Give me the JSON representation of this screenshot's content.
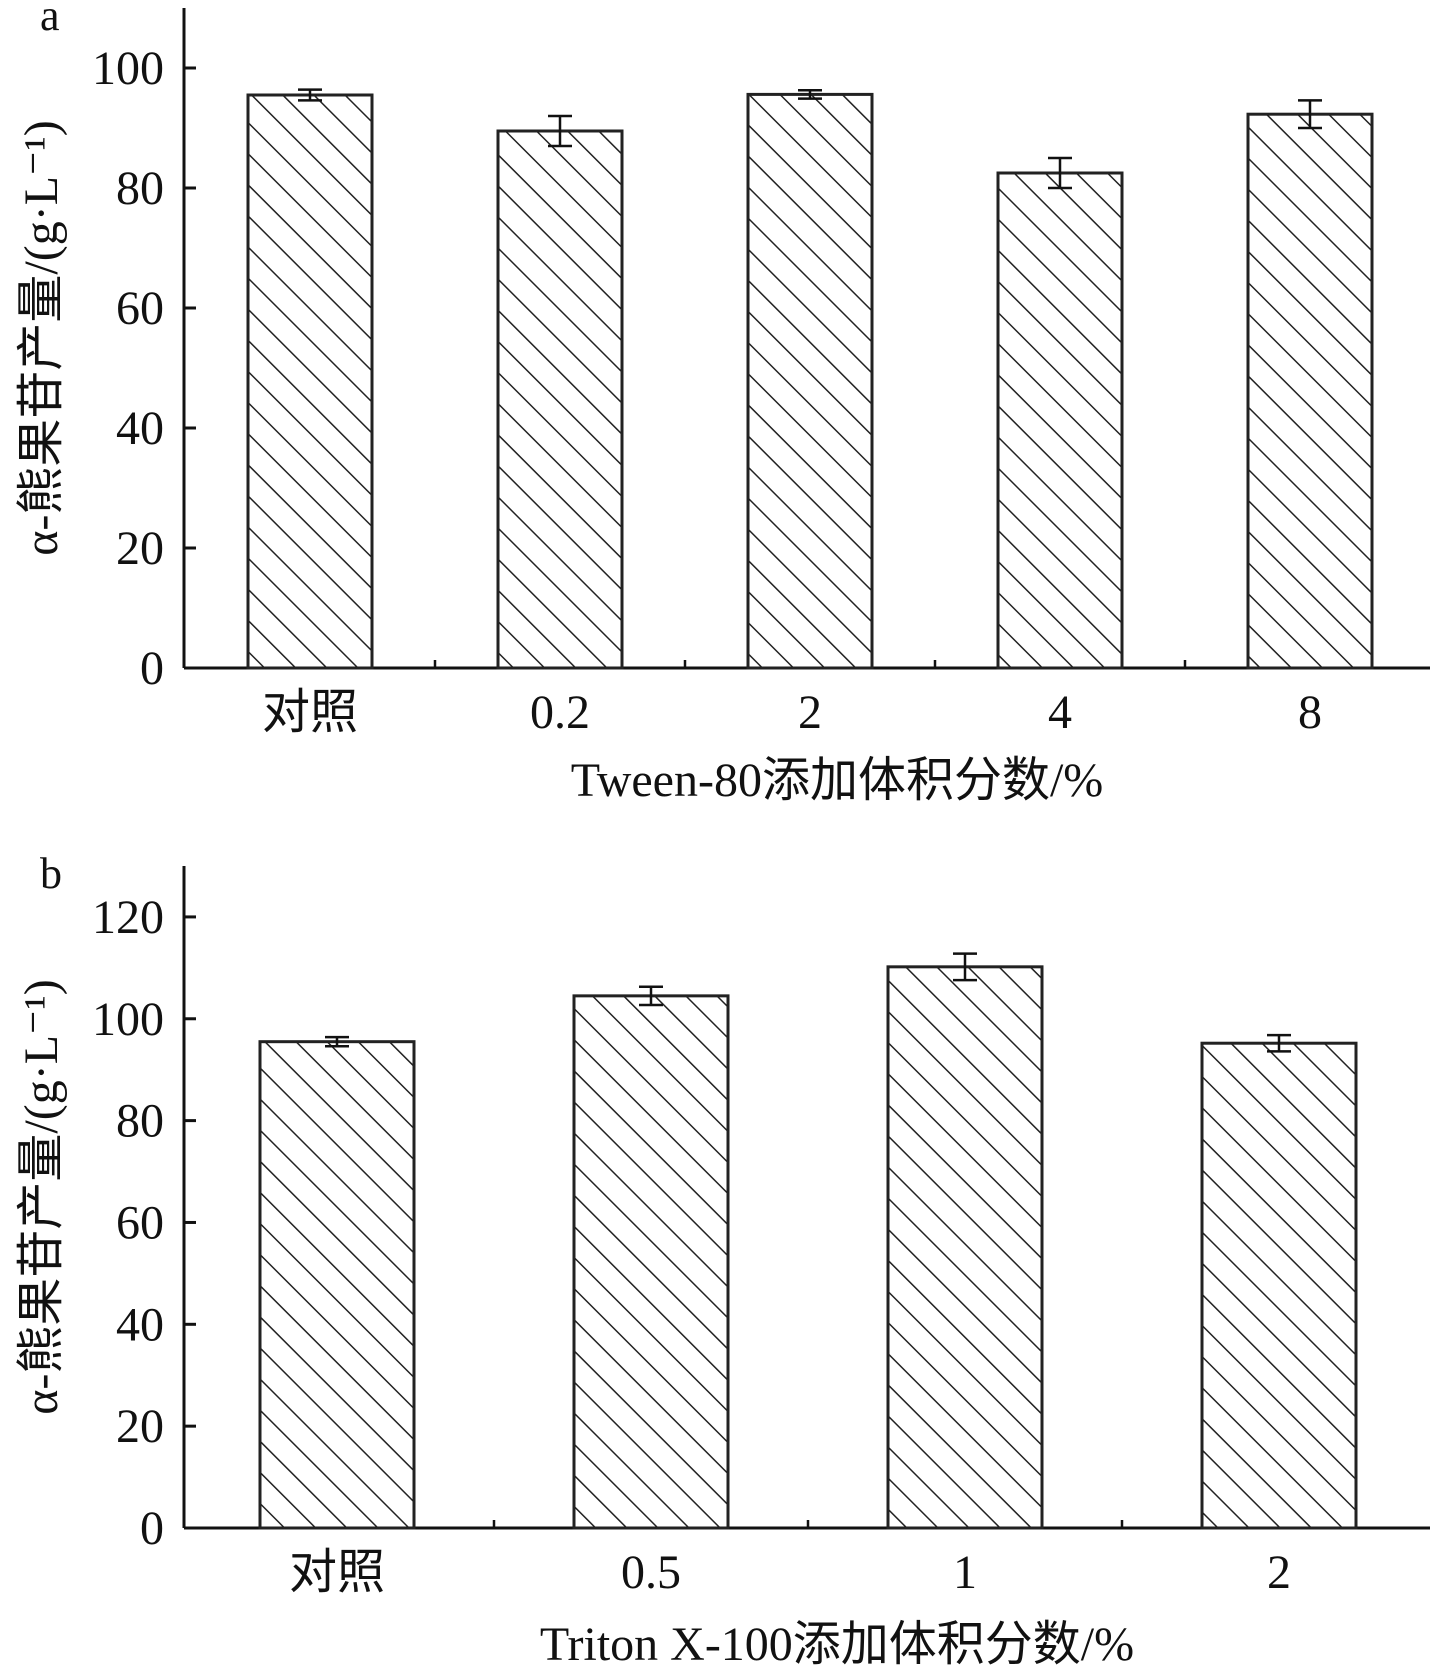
{
  "chart_data": [
    {
      "type": "bar",
      "panel_label": "a",
      "categories": [
        "对照",
        "0.2",
        "2",
        "4",
        "8"
      ],
      "series": [
        {
          "values": [
            95.5,
            89.5,
            95.6,
            82.5,
            92.3
          ],
          "errors": [
            0.9,
            2.5,
            0.7,
            2.5,
            2.3
          ]
        }
      ],
      "xlabel": "Tween-80添加体积分数/%",
      "ylabel": "α-熊果苷产量/(g·L⁻¹)",
      "ylim": [
        0,
        110
      ],
      "yticks": [
        0,
        20,
        40,
        60,
        80,
        100
      ],
      "grid": false,
      "fill_pattern": "diagonal-hatch",
      "colors": {
        "bar_fill": "#ffffff",
        "bar_stroke": "#222222",
        "hatch": "#222222",
        "axis": "#111111"
      }
    },
    {
      "type": "bar",
      "panel_label": "b",
      "categories": [
        "对照",
        "0.5",
        "1",
        "2"
      ],
      "series": [
        {
          "values": [
            95.5,
            104.5,
            110.2,
            95.2
          ],
          "errors": [
            0.9,
            1.8,
            2.6,
            1.6
          ]
        }
      ],
      "xlabel": "Triton X-100添加体积分数/%",
      "ylabel": "α-熊果苷产量/(g·L⁻¹)",
      "ylim": [
        0,
        130
      ],
      "yticks": [
        0,
        20,
        40,
        60,
        80,
        100,
        120
      ],
      "grid": false,
      "fill_pattern": "diagonal-hatch",
      "colors": {
        "bar_fill": "#ffffff",
        "bar_stroke": "#222222",
        "hatch": "#222222",
        "axis": "#111111"
      }
    }
  ]
}
